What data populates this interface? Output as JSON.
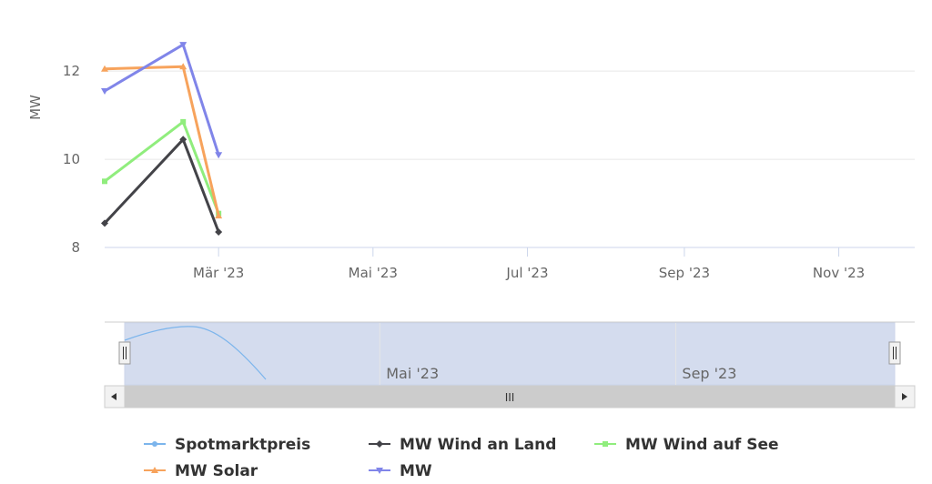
{
  "chart_data": {
    "type": "line",
    "title": "",
    "ylabel": "MW",
    "xlabel": "",
    "ylim": [
      8,
      13.2
    ],
    "yticks": [
      8,
      10,
      12
    ],
    "xrange": [
      "2023-01-15",
      "2023-12-01"
    ],
    "xticks": [
      {
        "date": "2023-03-01",
        "label": "Mär '23"
      },
      {
        "date": "2023-05-01",
        "label": "Mai '23"
      },
      {
        "date": "2023-07-01",
        "label": "Jul '23"
      },
      {
        "date": "2023-09-01",
        "label": "Sep '23"
      },
      {
        "date": "2023-11-01",
        "label": "Nov '23"
      }
    ],
    "grid": true,
    "legend_position": "bottom",
    "x": [
      "2023-01-15",
      "2023-02-15",
      "2023-03-01"
    ],
    "series": [
      {
        "name": "Spotmarktpreis",
        "color": "#7cb5ec",
        "marker": "circle",
        "values": [
          null,
          null,
          null
        ]
      },
      {
        "name": "MW Wind an Land",
        "color": "#434348",
        "marker": "diamond",
        "values": [
          8.55,
          10.45,
          8.35
        ]
      },
      {
        "name": "MW Wind auf See",
        "color": "#90ed7d",
        "marker": "square",
        "values": [
          9.5,
          10.85,
          8.77
        ]
      },
      {
        "name": "MW Solar",
        "color": "#f7a35c",
        "marker": "triangle",
        "values": [
          12.05,
          12.1,
          8.72
        ]
      },
      {
        "name": "MW",
        "color": "#8085e9",
        "marker": "triangle-down",
        "values": [
          11.55,
          12.6,
          10.1
        ]
      }
    ],
    "navigator": {
      "labels": [
        {
          "date": "2023-05-01",
          "label": "Mai '23"
        },
        {
          "date": "2023-09-01",
          "label": "Sep '23"
        }
      ],
      "scrollbar_grip": "III"
    }
  }
}
